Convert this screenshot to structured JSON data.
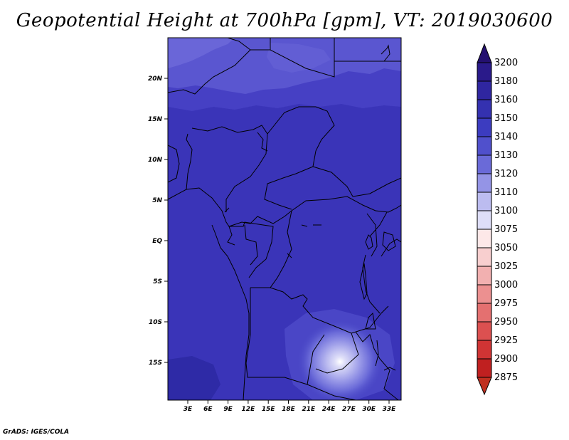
{
  "title": "Geopotential Height at 700hPa [gpm], VT: 2019030600",
  "credit": "GrADS: IGES/COLA",
  "map": {
    "lat_labels": [
      "20N",
      "15N",
      "10N",
      "5N",
      "EQ",
      "5S",
      "10S",
      "15S"
    ],
    "lon_labels": [
      "3E",
      "6E",
      "9E",
      "12E",
      "15E",
      "18E",
      "21E",
      "24E",
      "27E",
      "30E",
      "33E"
    ]
  },
  "colorbar": {
    "levels": [
      {
        "label": "3200",
        "color": "#2a1a8a"
      },
      {
        "label": "3180",
        "color": "#2f26a0"
      },
      {
        "label": "3160",
        "color": "#3431b0"
      },
      {
        "label": "3150",
        "color": "#3c3cc0"
      },
      {
        "label": "3140",
        "color": "#5050cc"
      },
      {
        "label": "3130",
        "color": "#6a6ad8"
      },
      {
        "label": "3120",
        "color": "#9494e6"
      },
      {
        "label": "3110",
        "color": "#bcbcf0"
      },
      {
        "label": "3100",
        "color": "#dedef8"
      },
      {
        "label": "3075",
        "color": "#fde8e8"
      },
      {
        "label": "3050",
        "color": "#f8cfcf"
      },
      {
        "label": "3025",
        "color": "#f2b0b0"
      },
      {
        "label": "3000",
        "color": "#ec9090"
      },
      {
        "label": "2975",
        "color": "#e47070"
      },
      {
        "label": "2950",
        "color": "#dc5050"
      },
      {
        "label": "2925",
        "color": "#d03434"
      },
      {
        "label": "2900",
        "color": "#c02020"
      },
      {
        "label": "2875",
        "color": "#a01212"
      }
    ],
    "top_color": "#241070",
    "bottom_color": "#c03020"
  }
}
